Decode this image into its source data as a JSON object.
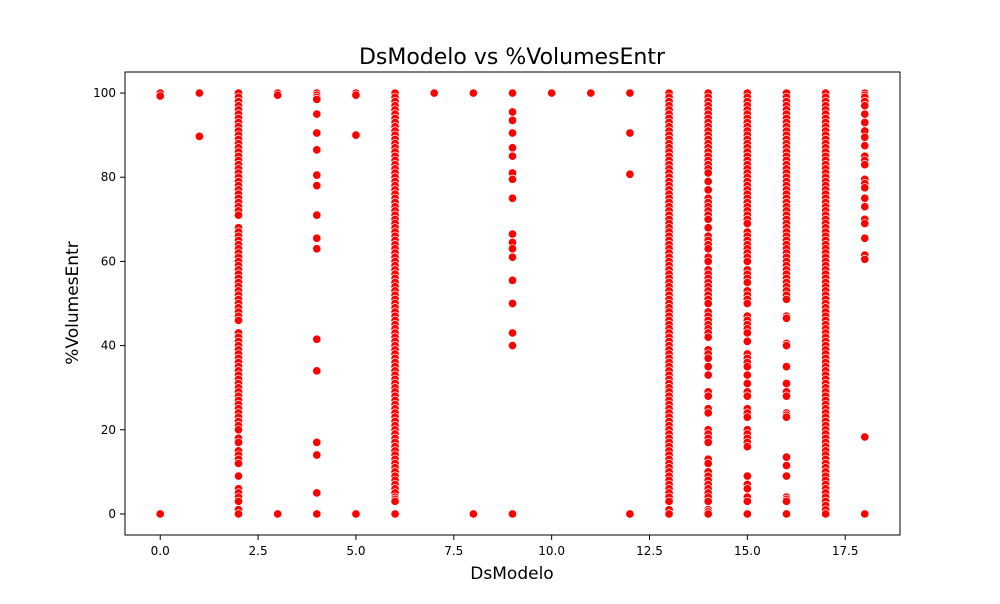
{
  "chart_data": {
    "type": "scatter",
    "title": "DsModelo vs %VolumesEntr",
    "xlabel": "DsModelo",
    "ylabel": "%VolumesEntr",
    "xlim": [
      -0.9,
      18.9
    ],
    "ylim": [
      -5,
      105
    ],
    "xticks": [
      0.0,
      2.5,
      5.0,
      7.5,
      10.0,
      12.5,
      15.0,
      17.5
    ],
    "xtick_labels": [
      "0.0",
      "2.5",
      "5.0",
      "7.5",
      "10.0",
      "12.5",
      "15.0",
      "17.5"
    ],
    "yticks": [
      0,
      20,
      40,
      60,
      80,
      100
    ],
    "ytick_labels": [
      "0",
      "20",
      "40",
      "60",
      "80",
      "100"
    ],
    "grid": false,
    "color": "#ff0000",
    "series": [
      {
        "points_by_x": [
          {
            "x": 0,
            "y": [
              100,
              99.3,
              0
            ]
          },
          {
            "x": 1,
            "y": [
              100,
              89.7
            ]
          },
          {
            "x": 2,
            "y": [
              100,
              99,
              98,
              97,
              96,
              95,
              94,
              93,
              92,
              91,
              90,
              89,
              88,
              87,
              86,
              85,
              84,
              83,
              82,
              81,
              80,
              79,
              78,
              77,
              76,
              75,
              74,
              73,
              72,
              71,
              68,
              67,
              66,
              65,
              64,
              63,
              62,
              61,
              60,
              59,
              58,
              57,
              56,
              55,
              54,
              53,
              52,
              51,
              50,
              49,
              48,
              47,
              46,
              43,
              42,
              41,
              40,
              39,
              38,
              37,
              36,
              35,
              34,
              33,
              32,
              31,
              30,
              29,
              28,
              27,
              26,
              25,
              24,
              23,
              22,
              21,
              20,
              18,
              17,
              15,
              14,
              13,
              12,
              9,
              6,
              5,
              4,
              3,
              1,
              0
            ]
          },
          {
            "x": 3,
            "y": [
              100,
              99.5,
              0
            ]
          },
          {
            "x": 4,
            "y": [
              100,
              99.5,
              99,
              98.5,
              95,
              90.5,
              86.5,
              80.5,
              78,
              71,
              65.5,
              63,
              41.5,
              34,
              17,
              14,
              5,
              0
            ]
          },
          {
            "x": 5,
            "y": [
              100,
              99.5,
              90,
              0
            ]
          },
          {
            "x": 6,
            "y": [
              100,
              99,
              98,
              97,
              96,
              95,
              94,
              93,
              92,
              91,
              90,
              89,
              88,
              87,
              86,
              85,
              84,
              83,
              82,
              81,
              80,
              79,
              78,
              77,
              76,
              75,
              74,
              73,
              72,
              71,
              70,
              69,
              68,
              67,
              66,
              65,
              64,
              63,
              62,
              61,
              60,
              59,
              58,
              57,
              56,
              55,
              54,
              53,
              52,
              51,
              50,
              49,
              48,
              47,
              46,
              45,
              44,
              43,
              42,
              41,
              40,
              39,
              38,
              37,
              36,
              35,
              34,
              33,
              32,
              31,
              30,
              29,
              28,
              27,
              26,
              25,
              24,
              23,
              22,
              21,
              20,
              19,
              18,
              17,
              16,
              15,
              14,
              13,
              12,
              11,
              10,
              9,
              8,
              7,
              6,
              5,
              4,
              3.5,
              3,
              0
            ]
          },
          {
            "x": 7,
            "y": [
              100
            ]
          },
          {
            "x": 8,
            "y": [
              100,
              0
            ]
          },
          {
            "x": 9,
            "y": [
              100,
              95.5,
              93.5,
              90.5,
              87,
              85,
              81,
              79.5,
              75,
              66.5,
              64.5,
              63,
              61,
              55.5,
              50,
              43,
              40,
              0
            ]
          },
          {
            "x": 10,
            "y": [
              100
            ]
          },
          {
            "x": 11,
            "y": [
              100
            ]
          },
          {
            "x": 12,
            "y": [
              100,
              90.5,
              80.7,
              0
            ]
          },
          {
            "x": 13,
            "y": [
              100,
              99,
              98,
              97,
              96,
              95,
              94,
              93,
              92,
              91,
              90,
              89,
              88,
              87,
              86,
              85,
              84,
              83,
              82,
              81,
              80,
              79,
              78,
              77,
              76,
              75,
              74,
              73,
              72,
              71,
              70,
              69,
              68,
              67,
              66,
              65,
              64,
              63,
              62,
              61,
              60,
              59,
              58,
              57,
              56,
              55,
              54,
              53,
              52,
              51,
              50,
              49,
              48,
              47,
              46,
              45,
              44,
              43,
              42,
              41,
              40,
              39,
              38,
              37,
              36,
              35,
              34,
              33,
              32,
              31,
              30,
              29,
              28,
              27,
              26,
              25,
              24,
              23,
              22,
              21,
              20,
              19,
              18,
              17,
              16,
              15,
              14,
              13,
              12,
              11,
              10,
              9,
              8,
              7,
              6,
              5,
              4,
              3,
              1,
              0
            ]
          },
          {
            "x": 14,
            "y": [
              100,
              99,
              98,
              97,
              96,
              95,
              94,
              93,
              92,
              91,
              90,
              89,
              88,
              87,
              86,
              85,
              84,
              83,
              82,
              81,
              79,
              77,
              75,
              74,
              73,
              72,
              71,
              70,
              68,
              66,
              65,
              64,
              63,
              61,
              60,
              58,
              57,
              56,
              55,
              54,
              53,
              52,
              51,
              50,
              48,
              47,
              46,
              45,
              44,
              43,
              42,
              39,
              38,
              37,
              35,
              33,
              29,
              28,
              25,
              24,
              20,
              19,
              18,
              17,
              13,
              12,
              10,
              9,
              8,
              7,
              6,
              5,
              4,
              3,
              1,
              0.5,
              0
            ]
          },
          {
            "x": 15,
            "y": [
              100,
              99,
              98,
              97,
              96,
              95,
              94,
              93,
              92,
              91,
              90,
              89,
              88,
              87,
              86,
              85,
              84,
              83,
              82,
              81,
              80,
              79,
              78,
              77,
              76,
              75,
              74,
              73,
              72,
              71,
              70,
              69,
              67,
              66,
              65,
              64,
              63,
              62,
              61,
              60,
              58,
              57,
              56,
              55,
              53,
              52,
              51,
              50,
              47,
              46,
              45,
              44,
              43,
              41,
              38,
              37,
              36,
              35,
              33,
              31,
              29,
              28,
              25,
              24,
              23,
              20,
              19,
              18,
              17,
              16,
              9,
              7,
              6,
              4,
              3,
              0
            ]
          },
          {
            "x": 16,
            "y": [
              100,
              99,
              98,
              97,
              96,
              95,
              94,
              93,
              92,
              91,
              90,
              89,
              88,
              87,
              86,
              85,
              84,
              83,
              82,
              81,
              80,
              79,
              78,
              77,
              76,
              75,
              74,
              73,
              72,
              71,
              70,
              69,
              68,
              67,
              66,
              65,
              64,
              63,
              62,
              61,
              60,
              59,
              58,
              57,
              56,
              55,
              54,
              53,
              52,
              51,
              47,
              46.5,
              40.5,
              40,
              35,
              31,
              29,
              28,
              24,
              23.5,
              23,
              13.5,
              11.5,
              9,
              4,
              3.5,
              3,
              0
            ]
          },
          {
            "x": 17,
            "y": [
              100,
              99,
              98,
              97,
              96,
              95,
              94,
              93,
              92,
              91,
              90,
              89,
              88,
              87,
              86,
              85,
              84,
              83,
              82,
              81,
              80,
              79,
              78,
              77,
              76,
              75,
              74,
              73,
              72,
              71,
              70,
              69,
              68,
              67,
              66,
              65,
              64,
              63,
              62,
              61,
              60,
              59,
              58,
              57,
              56,
              55,
              54,
              53,
              52,
              51,
              50,
              49,
              48,
              47,
              46,
              45,
              44,
              43,
              42,
              41,
              40,
              39,
              38,
              37,
              36,
              35,
              34,
              33,
              32,
              31,
              30,
              29,
              28,
              27,
              26,
              25,
              24,
              23,
              22,
              21,
              20,
              19,
              18,
              17,
              16,
              15,
              14,
              13,
              12,
              11,
              10,
              9,
              8,
              7,
              6,
              5,
              4,
              3,
              2,
              1,
              0
            ]
          },
          {
            "x": 18,
            "y": [
              100,
              99.5,
              99,
              98,
              97,
              95,
              93,
              91,
              89.5,
              87.5,
              85,
              84,
              83,
              79.5,
              78.5,
              77.5,
              75,
              73,
              70,
              69,
              65.5,
              61.5,
              60.5,
              18.3,
              0
            ]
          }
        ]
      }
    ]
  }
}
